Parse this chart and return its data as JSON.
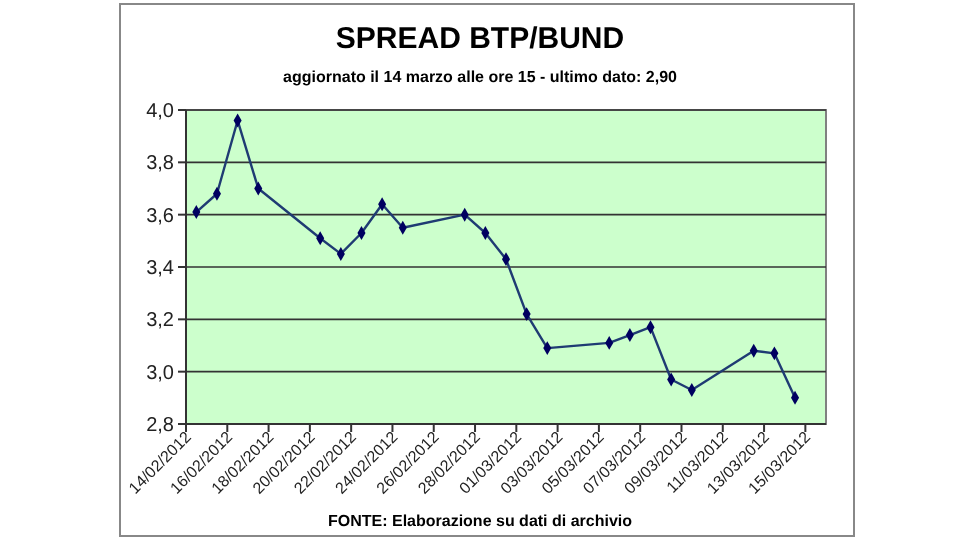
{
  "chart_data": {
    "type": "line",
    "title": "SPREAD BTP/BUND",
    "subtitle": "aggiornato il 14 marzo alle ore 15 - ultimo dato: 2,90",
    "annotations": [
      "FONTE: Elaborazione su dati di archivio"
    ],
    "x": [
      "2012-02-14T12:00",
      "2012-02-15T12:00",
      "2012-02-16T12:00",
      "2012-02-17T12:00",
      "2012-02-20T12:00",
      "2012-02-21T12:00",
      "2012-02-22T12:00",
      "2012-02-23T12:00",
      "2012-02-24T12:00",
      "2012-02-27T12:00",
      "2012-02-28T12:00",
      "2012-02-29T12:00",
      "2012-03-01T12:00",
      "2012-03-02T12:00",
      "2012-03-05T12:00",
      "2012-03-06T12:00",
      "2012-03-07T12:00",
      "2012-03-08T12:00",
      "2012-03-09T12:00",
      "2012-03-12T12:00",
      "2012-03-13T12:00",
      "2012-03-14T12:00"
    ],
    "series": [
      {
        "color": "#1f3b73",
        "values": [
          3.61,
          3.68,
          3.96,
          3.7,
          3.51,
          3.45,
          3.53,
          3.64,
          3.55,
          3.6,
          3.53,
          3.43,
          3.22,
          3.09,
          3.11,
          3.14,
          3.17,
          2.97,
          2.93,
          3.08,
          3.07,
          2.9
        ]
      }
    ],
    "xlim": [
      "2012-02-14",
      "2012-03-16"
    ],
    "xticks": [
      {
        "value": "2012-02-14",
        "label": "14/02/2012"
      },
      {
        "value": "2012-02-16",
        "label": "16/02/2012"
      },
      {
        "value": "2012-02-18",
        "label": "18/02/2012"
      },
      {
        "value": "2012-02-20",
        "label": "20/02/2012"
      },
      {
        "value": "2012-02-22",
        "label": "22/02/2012"
      },
      {
        "value": "2012-02-24",
        "label": "24/02/2012"
      },
      {
        "value": "2012-02-26",
        "label": "26/02/2012"
      },
      {
        "value": "2012-02-28",
        "label": "28/02/2012"
      },
      {
        "value": "2012-03-01",
        "label": "01/03/2012"
      },
      {
        "value": "2012-03-03",
        "label": "03/03/2012"
      },
      {
        "value": "2012-03-05",
        "label": "05/03/2012"
      },
      {
        "value": "2012-03-07",
        "label": "07/03/2012"
      },
      {
        "value": "2012-03-09",
        "label": "09/03/2012"
      },
      {
        "value": "2012-03-11",
        "label": "11/03/2012"
      },
      {
        "value": "2012-03-13",
        "label": "13/03/2012"
      },
      {
        "value": "2012-03-15",
        "label": "15/03/2012"
      }
    ],
    "ylim": [
      2.8,
      4.0
    ],
    "yticks": [
      {
        "value": 2.8,
        "label": "2,8"
      },
      {
        "value": 3.0,
        "label": "3,0"
      },
      {
        "value": 3.2,
        "label": "3,2"
      },
      {
        "value": 3.4,
        "label": "3,4"
      },
      {
        "value": 3.6,
        "label": "3,6"
      },
      {
        "value": 3.8,
        "label": "3,8"
      },
      {
        "value": 4.0,
        "label": "4,0"
      }
    ],
    "grid": "y",
    "marker": "diamond",
    "line_style": "solid"
  }
}
